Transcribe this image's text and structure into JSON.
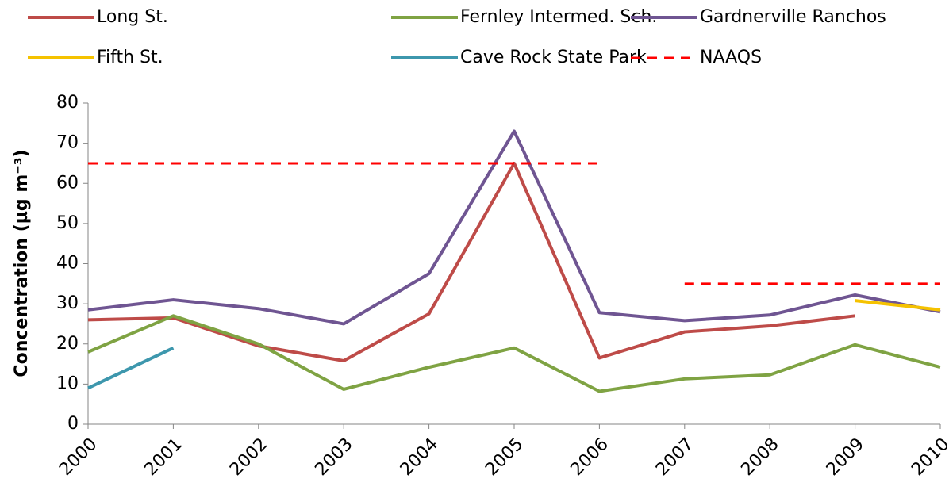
{
  "chart_data": {
    "type": "line",
    "ylabel": "Concentration (µg m⁻³)",
    "x": [
      2000,
      2001,
      2002,
      2003,
      2004,
      2005,
      2006,
      2007,
      2008,
      2009,
      2010
    ],
    "xlim": [
      2000,
      2010
    ],
    "xticks": [
      2000,
      2001,
      2002,
      2003,
      2004,
      2005,
      2006,
      2007,
      2008,
      2009,
      2010
    ],
    "ylim": [
      0,
      80
    ],
    "yticks": [
      0,
      10,
      20,
      30,
      40,
      50,
      60,
      70,
      80
    ],
    "grid": false,
    "series": [
      {
        "name": "Long St.",
        "color": "#be4b48",
        "values": [
          26,
          26.5,
          19.5,
          15.8,
          27.5,
          65,
          16.5,
          23,
          24.5,
          27,
          null
        ]
      },
      {
        "name": "Fernley Intermed. Sch.",
        "color": "#7fa343",
        "values": [
          18,
          27,
          20,
          8.7,
          14.2,
          19,
          8.2,
          11.3,
          12.3,
          19.8,
          14.2
        ]
      },
      {
        "name": "Gardnerville Ranchos",
        "color": "#6f5592",
        "values": [
          28.5,
          31,
          28.8,
          25,
          37.5,
          73,
          27.8,
          25.8,
          27.2,
          32.2,
          28
        ]
      },
      {
        "name": "Fifth St.",
        "color": "#f5c200",
        "values": [
          null,
          null,
          null,
          null,
          null,
          null,
          null,
          null,
          null,
          30.8,
          28.5
        ]
      },
      {
        "name": "Cave Rock State Park",
        "color": "#3d97ad",
        "values": [
          9,
          19,
          null,
          null,
          null,
          null,
          null,
          null,
          null,
          null,
          null
        ]
      },
      {
        "name": "NAAQS",
        "color": "#ff0000",
        "dashed": true,
        "segments": [
          {
            "x": [
              2000,
              2006
            ],
            "value": 65
          },
          {
            "x": [
              2007,
              2010
            ],
            "value": 35
          }
        ]
      }
    ]
  }
}
